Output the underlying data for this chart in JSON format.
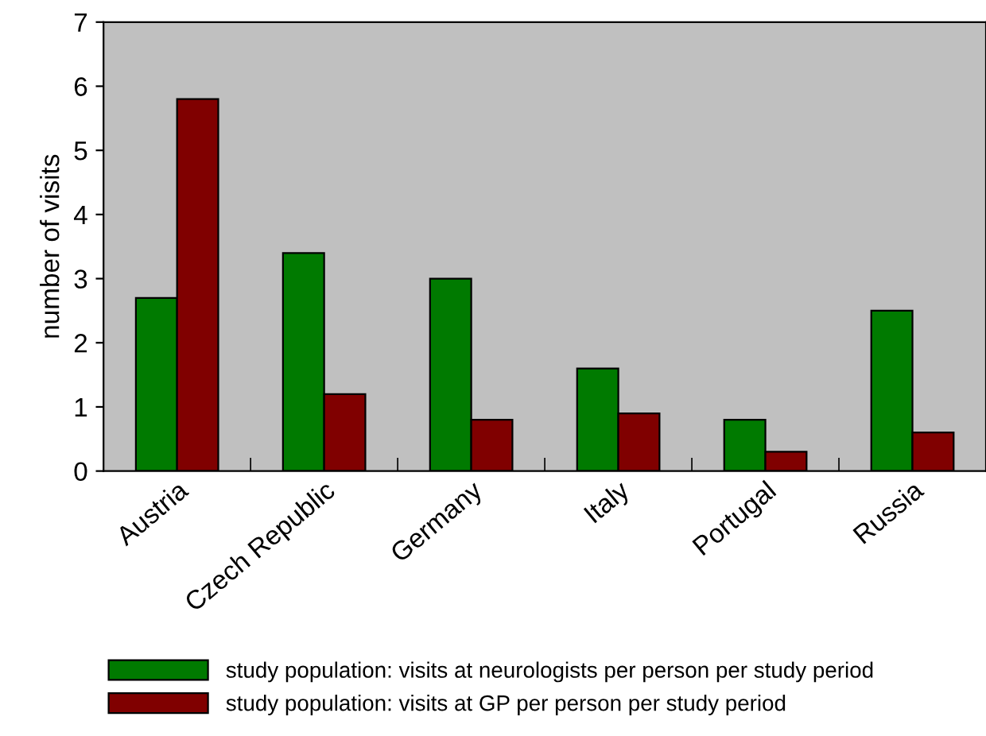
{
  "chart_data": {
    "type": "bar",
    "ylabel": "number of visits",
    "categories": [
      "Austria",
      "Czech Republic",
      "Germany",
      "Italy",
      "Portugal",
      "Russia"
    ],
    "series": [
      {
        "name": "study population: visits at neurologists per person per study period",
        "color": "#007a00",
        "values": [
          2.7,
          3.4,
          3.0,
          1.6,
          0.8,
          2.5
        ]
      },
      {
        "name": "study population: visits at GP per person per study period",
        "color": "#800000",
        "values": [
          5.8,
          1.2,
          0.8,
          0.9,
          0.3,
          0.6
        ]
      }
    ],
    "ylim": [
      0,
      7
    ],
    "yticks": [
      0,
      1,
      2,
      3,
      4,
      5,
      6,
      7
    ],
    "grid": false,
    "legend": "bottom"
  }
}
